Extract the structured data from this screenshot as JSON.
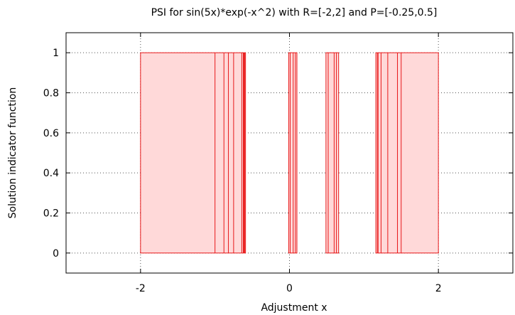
{
  "chart_data": {
    "type": "area",
    "title": "PSI for sin(5x)*exp(-x^2) with R=[-2,2] and P=[-0.25,0.5]",
    "xlabel": "Adjustment x",
    "ylabel": "Solution indicator function",
    "xlim": [
      -3,
      3
    ],
    "ylim": [
      -0.1,
      1.1
    ],
    "xticks": [
      -2,
      0,
      2
    ],
    "xtick_labels": [
      "-2",
      "0",
      "2"
    ],
    "yticks": [
      0,
      0.2,
      0.4,
      0.6,
      0.8,
      1
    ],
    "ytick_labels": [
      "0",
      "0.2",
      "0.4",
      "0.6",
      "0.8",
      "1"
    ],
    "grid": true,
    "legend": "none",
    "colors": {
      "fill": "#ffd9d9",
      "stroke": "#e8191a",
      "grid": "#555555"
    },
    "series": [
      {
        "intervals": [
          [
            -2.0,
            -0.59
          ],
          [
            -0.01,
            0.1
          ],
          [
            0.49,
            0.66
          ],
          [
            1.16,
            2.0
          ]
        ],
        "value": 1,
        "dividers": [
          -1.0,
          -0.88,
          -0.82,
          -0.75,
          -0.64,
          -0.62,
          -0.61,
          -0.6,
          0.01,
          0.05,
          0.08,
          0.52,
          0.6,
          0.63,
          1.18,
          1.19,
          1.23,
          1.32,
          1.45,
          1.5
        ]
      }
    ]
  }
}
